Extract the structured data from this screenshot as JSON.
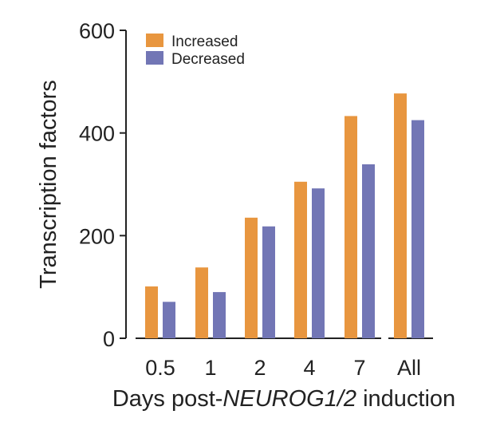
{
  "chart_data": {
    "type": "bar",
    "title": "",
    "categories": [
      "0.5",
      "1",
      "2",
      "4",
      "7",
      "All"
    ],
    "series": [
      {
        "name": "Increased",
        "color": "#E8963F",
        "values": [
          101,
          138,
          235,
          305,
          433,
          477
        ]
      },
      {
        "name": "Decreased",
        "color": "#7276B5",
        "values": [
          71,
          90,
          218,
          292,
          339,
          425
        ]
      }
    ],
    "ylabel": "Transcription factors",
    "xlabel": {
      "prefix": "Days post-",
      "italic": "NEUROG1/2",
      "suffix": " induction"
    },
    "ylim": [
      0,
      600
    ],
    "yticks": [
      0,
      200,
      400,
      600
    ],
    "legend_position": "top-left",
    "grid": false
  }
}
